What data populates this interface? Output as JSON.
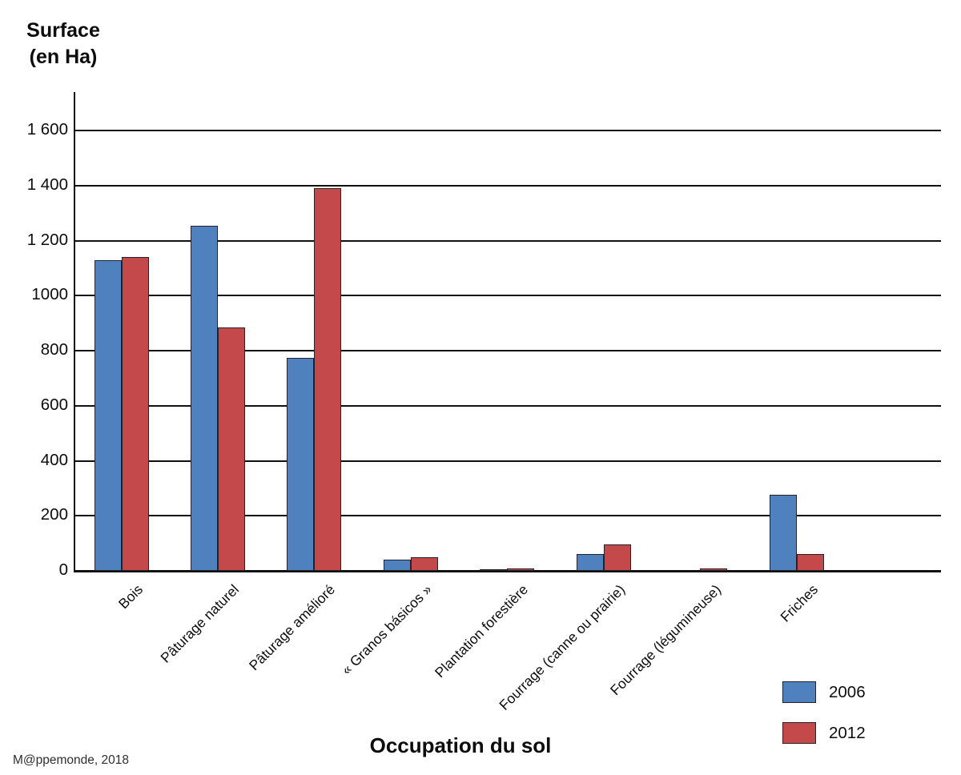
{
  "chart_data": {
    "type": "bar",
    "title": "",
    "ylabel_line1": "Surface",
    "ylabel_line2": "(en Ha)",
    "xlabel": "Occupation du sol",
    "categories": [
      "Bois",
      "Pâturage naturel",
      "Pâturage amélioré",
      "« Granos básicos »",
      "Plantation forestière",
      "Fourrage (canne ou prairie)",
      "Fourrage (légumineuse)",
      "Friches"
    ],
    "series": [
      {
        "name": "2006",
        "color": "#4E81BD",
        "values": [
          1130,
          1255,
          775,
          40,
          5,
          60,
          0,
          275
        ]
      },
      {
        "name": "2012",
        "color": "#C3494B",
        "values": [
          1140,
          885,
          1390,
          50,
          10,
          95,
          8,
          60
        ]
      }
    ],
    "ylim": [
      0,
      1600
    ],
    "ytick_step": 200,
    "ytick_labels": [
      "1 600",
      "1 400",
      "1 200",
      "1000",
      "800",
      "600",
      "400",
      "200",
      "0"
    ],
    "grid": true,
    "legend_position": "bottom-right"
  },
  "credit": "M@ppemonde, 2018"
}
